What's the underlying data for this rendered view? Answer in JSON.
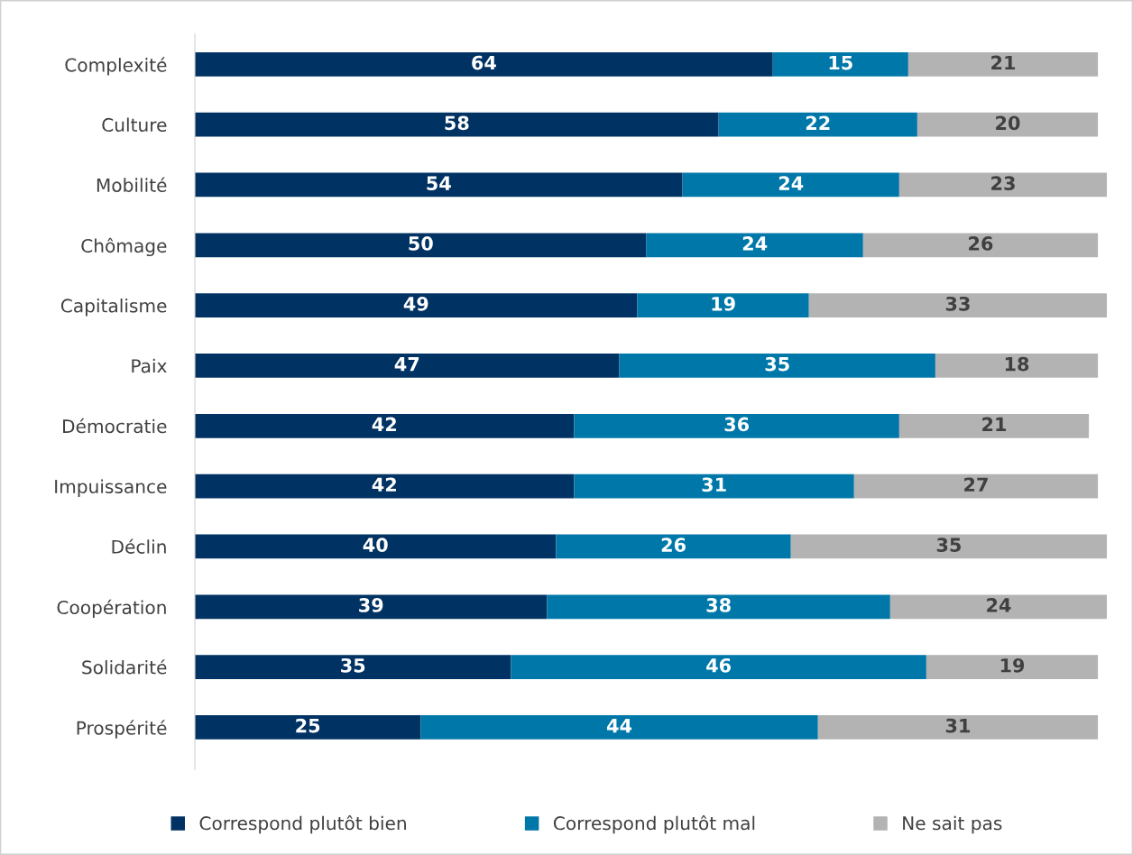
{
  "chart_data": {
    "type": "bar",
    "orientation": "horizontal",
    "stacked": true,
    "data_labels": true,
    "legend": "bottom",
    "grid": false,
    "categories": [
      "Complexité",
      "Culture",
      "Mobilité",
      "Chômage",
      "Capitalisme",
      "Paix",
      "Démocratie",
      "Impuissance",
      "Déclin",
      "Coopération",
      "Solidarité",
      "Prospérité"
    ],
    "series": [
      {
        "name": "Correspond plutôt bien",
        "color": "#003263",
        "values": [
          64,
          58,
          54,
          50,
          49,
          47,
          42,
          42,
          40,
          39,
          35,
          25
        ]
      },
      {
        "name": "Correspond plutôt mal",
        "color": "#0077a9",
        "values": [
          15,
          22,
          24,
          24,
          19,
          35,
          36,
          31,
          26,
          38,
          46,
          44
        ]
      },
      {
        "name": "Ne sait pas",
        "color": "#b3b3b3",
        "values": [
          21,
          20,
          23,
          26,
          33,
          18,
          21,
          27,
          35,
          24,
          19,
          31
        ]
      }
    ]
  }
}
